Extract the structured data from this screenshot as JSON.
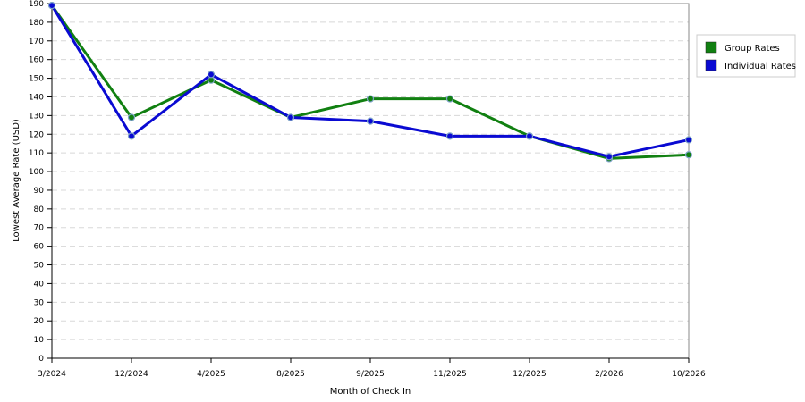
{
  "chart_data": {
    "type": "line",
    "title": "",
    "xlabel": "Month of Check In",
    "ylabel": "Lowest Average Rate (USD)",
    "categories": [
      "3/2024",
      "12/2024",
      "4/2025",
      "8/2025",
      "9/2025",
      "11/2025",
      "12/2025",
      "2/2026",
      "10/2026"
    ],
    "ylim": [
      0,
      190
    ],
    "yticks": [
      0,
      10,
      20,
      30,
      40,
      50,
      60,
      70,
      80,
      90,
      100,
      110,
      120,
      130,
      140,
      150,
      160,
      170,
      180,
      190
    ],
    "grid": true,
    "legend_position": "right",
    "series": [
      {
        "name": "Group Rates",
        "color": "#118011",
        "values": [
          189,
          129,
          149,
          129,
          139,
          139,
          119,
          107,
          109
        ]
      },
      {
        "name": "Individual Rates",
        "color": "#0a0ad2",
        "values": [
          189,
          119,
          152,
          129,
          127,
          119,
          119,
          108,
          117
        ]
      }
    ]
  }
}
